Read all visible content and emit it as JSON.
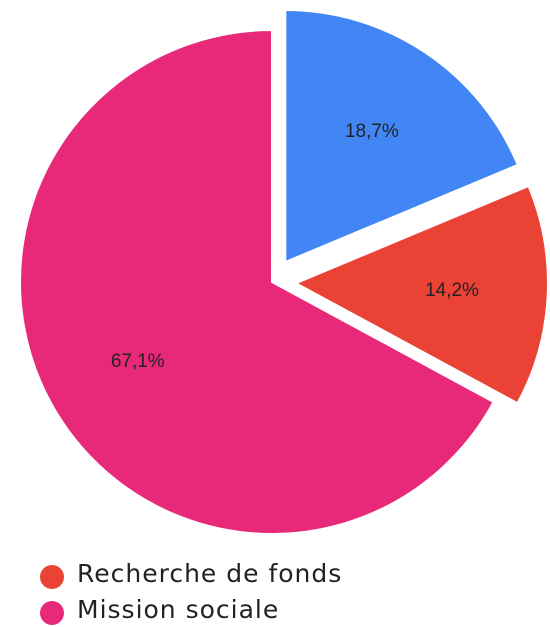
{
  "chart_data": {
    "type": "pie",
    "categories": [
      null,
      "Recherche de fonds",
      "Mission sociale"
    ],
    "values": [
      18.7,
      14.2,
      67.1
    ],
    "value_labels": [
      "18,7%",
      "14,2%",
      "67,1%"
    ],
    "colors": [
      "#4285f4",
      "#ea4335",
      "#e8297a"
    ],
    "explode": [
      true,
      true,
      false
    ],
    "legend": "bottom-left"
  }
}
